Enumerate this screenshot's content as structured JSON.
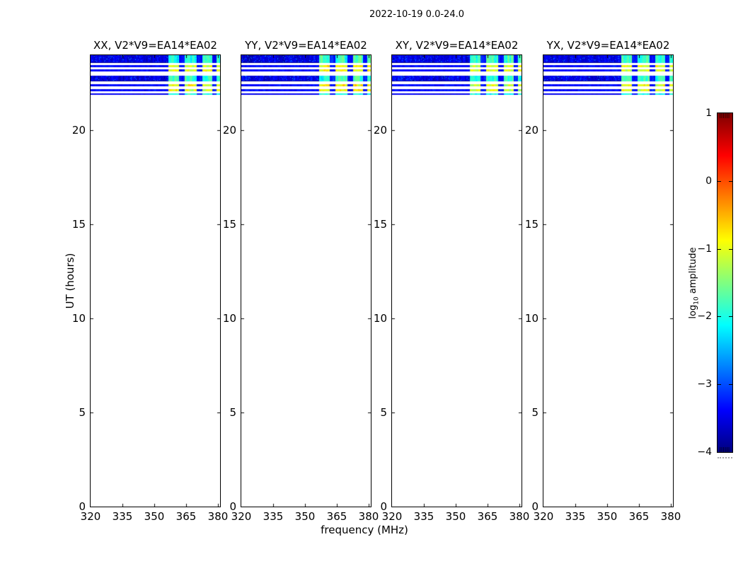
{
  "figure": {
    "title": "2022-10-19 0.0-24.0"
  },
  "axes": {
    "xlabel": "frequency (MHz)",
    "ylabel": "UT (hours)",
    "x_tick_labels": [
      "320",
      "335",
      "350",
      "365",
      "380"
    ],
    "y_tick_labels": [
      "0",
      "5",
      "10",
      "15",
      "20"
    ]
  },
  "colorbar": {
    "label_prefix": "log",
    "label_sub": "10",
    "label_suffix": " amplitude",
    "tick_labels": [
      "1",
      "0",
      "−1",
      "−2",
      "−3",
      "−4"
    ]
  },
  "chart_data": {
    "type": "heatmap",
    "title": "2022-10-19 0.0-24.0",
    "xlabel": "frequency (MHz)",
    "ylabel": "UT (hours)",
    "xlim": [
      320,
      381
    ],
    "ylim": [
      0,
      24
    ],
    "xticks": [
      320,
      335,
      350,
      365,
      380
    ],
    "yticks": [
      0,
      5,
      10,
      15,
      20
    ],
    "colormap": "jet",
    "colorbar": {
      "label": "log10 amplitude",
      "ticks": [
        1,
        0,
        -1,
        -2,
        -3,
        -4
      ],
      "lim": [
        -4,
        1
      ]
    },
    "panels": [
      {
        "id": "XX",
        "title": "XX, V2*V9=EA14*EA02",
        "seed": 11,
        "thick_mean": -1.85,
        "thin_mean": -1.05
      },
      {
        "id": "YY",
        "title": "YY, V2*V9=EA14*EA02",
        "seed": 22,
        "thick_mean": -1.8,
        "thin_mean": -0.85
      },
      {
        "id": "XY",
        "title": "XY, V2*V9=EA14*EA02",
        "seed": 33,
        "thick_mean": -1.9,
        "thin_mean": -1.1
      },
      {
        "id": "YX",
        "title": "YX, V2*V9=EA14*EA02",
        "seed": 44,
        "thick_mean": -1.85,
        "thin_mean": -1.0
      }
    ],
    "stripes": [
      {
        "ut": [
          23.6,
          24.0
        ],
        "kind": "thick"
      },
      {
        "ut": [
          23.36,
          23.47
        ],
        "kind": "thin"
      },
      {
        "ut": [
          23.12,
          23.23
        ],
        "kind": "thin"
      },
      {
        "ut": [
          22.59,
          22.91
        ],
        "kind": "thick"
      },
      {
        "ut": [
          22.35,
          22.46
        ],
        "kind": "thin"
      },
      {
        "ut": [
          22.1,
          22.21
        ],
        "kind": "thin"
      },
      {
        "ut": [
          21.91,
          21.97
        ],
        "kind": "faint"
      }
    ],
    "freq_regions": {
      "quiet": {
        "range": [
          320,
          356.5
        ],
        "log10_amp_mean": -3.5
      },
      "active": {
        "range": [
          356.5,
          381
        ],
        "thick_log10_amp_mean": -1.85,
        "thin_log10_amp_mean": -1.0
      },
      "gaps": [
        [
          361.5,
          364.3
        ],
        [
          370.0,
          372.4
        ],
        [
          377.2,
          379.2
        ]
      ],
      "gap_log10_amp_mean": -3.3
    }
  }
}
